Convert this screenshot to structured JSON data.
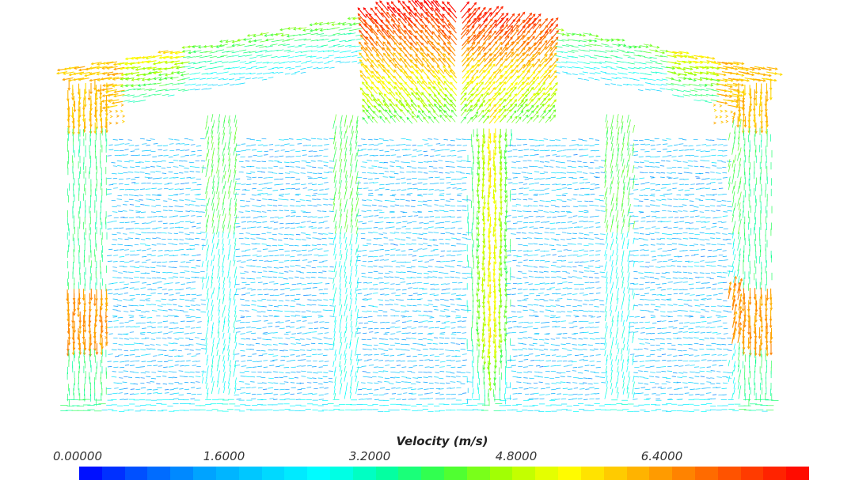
{
  "scalar_bar": {
    "title": "Velocity (m/s)",
    "ticks": [
      "0.00000",
      "1.6000",
      "3.2000",
      "4.8000",
      "6.4000"
    ],
    "range": [
      0,
      8.0
    ],
    "colormap": [
      "#0000ff",
      "#0055ff",
      "#00a0ff",
      "#00d0ff",
      "#00ffff",
      "#00ffa8",
      "#3cff3c",
      "#a8ff00",
      "#ffff00",
      "#ffbf00",
      "#ff7f00",
      "#ff3f00",
      "#ff0000"
    ]
  },
  "field": {
    "description_colors": {
      "slow": "#3fa9f5",
      "medium": "#2fe0c0",
      "fast": "#ffd700",
      "fastest": "#ff3300"
    }
  }
}
